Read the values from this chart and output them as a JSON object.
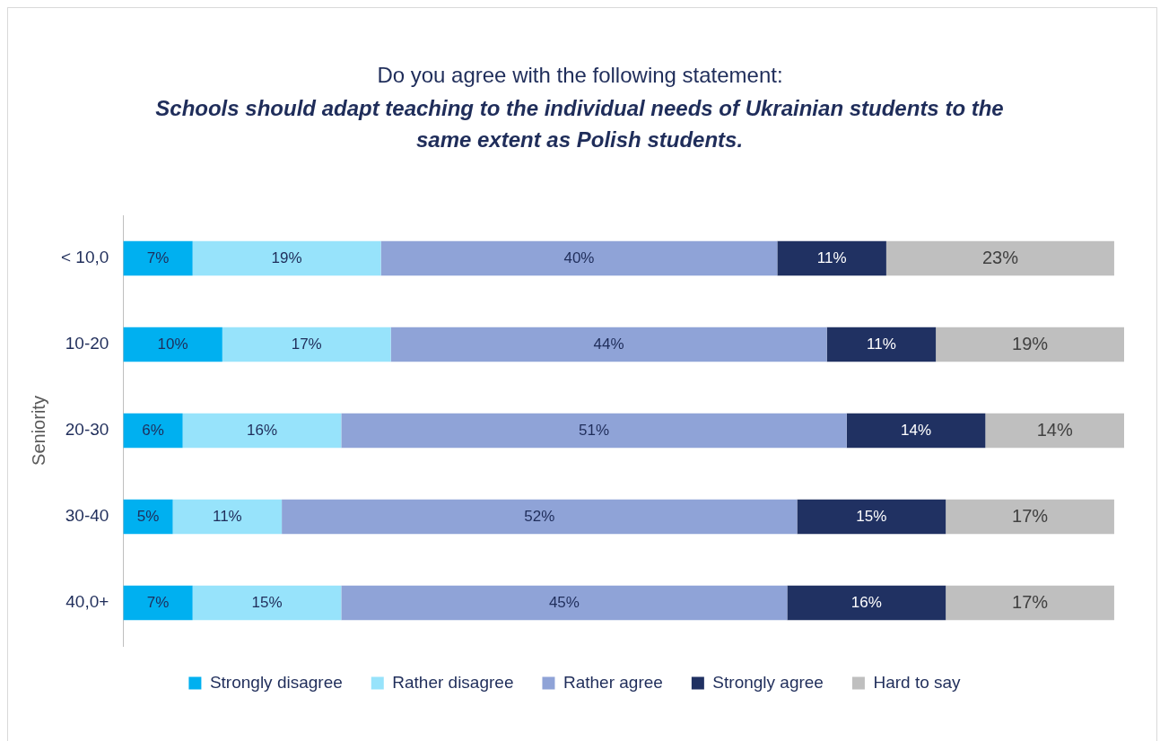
{
  "chart_data": {
    "type": "bar",
    "orientation": "horizontal",
    "stacked": true,
    "title": "Do you agree with the following statement:",
    "subtitle": "Schools should adapt teaching to the individual needs of Ukrainian students to the same extent as Polish students.",
    "ylabel": "Seniority",
    "categories": [
      "< 10,0",
      "10-20",
      "20-30",
      "30-40",
      "40,0+"
    ],
    "series": [
      {
        "name": "Strongly disagree",
        "color": "#00b0f0",
        "values": [
          7,
          10,
          6,
          5,
          7
        ],
        "value_labels": [
          "7%",
          "10%",
          "6%",
          "5%",
          "7%"
        ]
      },
      {
        "name": "Rather disagree",
        "color": "#97e3fb",
        "values": [
          19,
          17,
          16,
          11,
          15
        ],
        "value_labels": [
          "19%",
          "17%",
          "16%",
          "11%",
          "15%"
        ]
      },
      {
        "name": "Rather agree",
        "color": "#8fa3d7",
        "values": [
          40,
          44,
          51,
          52,
          45
        ],
        "value_labels": [
          "40%",
          "44%",
          "51%",
          "52%",
          "45%"
        ]
      },
      {
        "name": "Strongly agree",
        "color": "#203162",
        "values": [
          11,
          11,
          14,
          15,
          16
        ],
        "value_labels": [
          "11%",
          "11%",
          "14%",
          "15%",
          "16%"
        ]
      },
      {
        "name": "Hard to say",
        "color": "#bfbfbf",
        "values": [
          23,
          19,
          14,
          17,
          17
        ],
        "value_labels": [
          "23%",
          "19%",
          "14%",
          "17%",
          "17%"
        ]
      }
    ],
    "legend": "bottom"
  }
}
